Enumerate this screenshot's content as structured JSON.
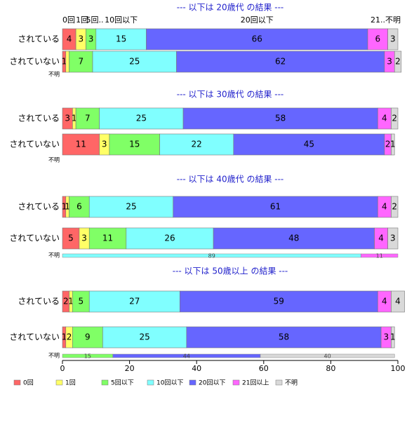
{
  "chart_data": {
    "type": "bar",
    "orientation": "horizontal",
    "stacked": "percent",
    "xlim": [
      0,
      100
    ],
    "xticks": [
      0,
      20,
      40,
      60,
      80,
      100
    ],
    "categories": [
      "0回",
      "1回",
      "5回以下",
      "10回以下",
      "20回以下",
      "21回以上",
      "不明"
    ],
    "colors": [
      "#ff6666",
      "#ffff66",
      "#80ff66",
      "#80ffff",
      "#6666ff",
      "#ff66ff",
      "#d9d9d9"
    ],
    "top_labels": [
      "0回",
      "1回",
      "5回..",
      "10回以下",
      "20回以下",
      "21..",
      "不明"
    ],
    "groups": [
      {
        "title": "--- 以下は 20歳代 の結果 ---",
        "rows": [
          {
            "label": "されている",
            "values": [
              4,
              3,
              3,
              15,
              66,
              6,
              3
            ],
            "display": [
              "4",
              "3",
              "3",
              "15",
              "66",
              "6",
              "3"
            ]
          },
          {
            "label": "されていない",
            "values": [
              1,
              1,
              7,
              25,
              62,
              3,
              2
            ],
            "display": [
              "1",
              "",
              "7",
              "25",
              "62",
              "3",
              "2"
            ]
          }
        ],
        "unknown": {
          "label": "不明",
          "values": [],
          "display": []
        }
      },
      {
        "title": "--- 以下は 30歳代 の結果 ---",
        "rows": [
          {
            "label": "されている",
            "values": [
              3,
              1,
              7,
              25,
              58,
              4,
              2
            ],
            "display": [
              "3",
              "1",
              "7",
              "25",
              "58",
              "4",
              "2"
            ]
          },
          {
            "label": "されていない",
            "values": [
              11,
              3,
              15,
              22,
              45,
              2,
              1
            ],
            "display": [
              "11",
              "3",
              "15",
              "22",
              "45",
              "2",
              "1"
            ]
          }
        ],
        "unknown": {
          "label": "不明",
          "values": [],
          "display": []
        }
      },
      {
        "title": "--- 以下は 40歳代 の結果 ---",
        "rows": [
          {
            "label": "されている",
            "values": [
              1,
              1,
              6,
              25,
              61,
              4,
              2
            ],
            "display": [
              "1",
              "1",
              "6",
              "25",
              "61",
              "4",
              "2"
            ]
          },
          {
            "label": "されていない",
            "values": [
              5,
              3,
              11,
              26,
              48,
              4,
              3
            ],
            "display": [
              "5",
              "3",
              "11",
              "26",
              "48",
              "4",
              "3"
            ]
          }
        ],
        "unknown": {
          "label": "不明",
          "values": [
            0,
            0,
            0,
            89,
            0,
            11,
            0
          ],
          "display": [
            "",
            "",
            "",
            "89",
            "",
            "11",
            ""
          ]
        }
      },
      {
        "title": "--- 以下は 50歳以上 の結果 ---",
        "rows": [
          {
            "label": "されている",
            "values": [
              2,
              1,
              5,
              27,
              59,
              4,
              4
            ],
            "display": [
              "2",
              "1",
              "5",
              "27",
              "59",
              "4",
              "4"
            ]
          },
          {
            "label": "されていない",
            "values": [
              1,
              2,
              9,
              25,
              58,
              3,
              1
            ],
            "display": [
              "1",
              "2",
              "9",
              "25",
              "58",
              "3",
              "1"
            ]
          }
        ],
        "unknown": {
          "label": "不明",
          "values": [
            0,
            0,
            15,
            0,
            44,
            0,
            40
          ],
          "display": [
            "",
            "",
            "15",
            "",
            "44",
            "",
            "40"
          ]
        }
      }
    ]
  }
}
